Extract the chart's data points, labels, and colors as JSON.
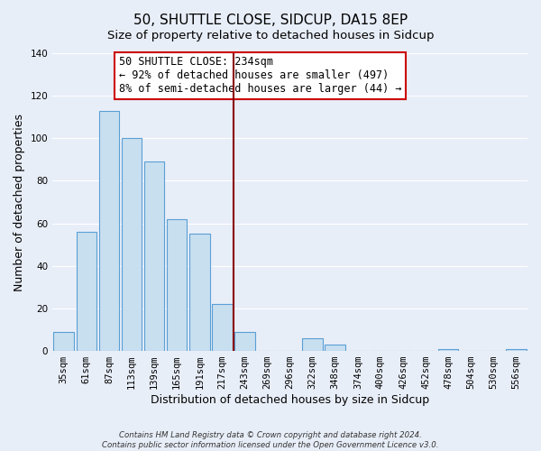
{
  "title": "50, SHUTTLE CLOSE, SIDCUP, DA15 8EP",
  "subtitle": "Size of property relative to detached houses in Sidcup",
  "xlabel": "Distribution of detached houses by size in Sidcup",
  "ylabel": "Number of detached properties",
  "bar_labels": [
    "35sqm",
    "61sqm",
    "87sqm",
    "113sqm",
    "139sqm",
    "165sqm",
    "191sqm",
    "217sqm",
    "243sqm",
    "269sqm",
    "296sqm",
    "322sqm",
    "348sqm",
    "374sqm",
    "400sqm",
    "426sqm",
    "452sqm",
    "478sqm",
    "504sqm",
    "530sqm",
    "556sqm"
  ],
  "bar_values": [
    9,
    56,
    113,
    100,
    89,
    62,
    55,
    22,
    9,
    0,
    0,
    6,
    3,
    0,
    0,
    0,
    0,
    1,
    0,
    0,
    1
  ],
  "bar_color": "#c8dff0",
  "bar_edge_color": "#5a9fd4",
  "vline_x_index": 8,
  "vline_color": "#8b0000",
  "ylim": [
    0,
    140
  ],
  "yticks": [
    0,
    20,
    40,
    60,
    80,
    100,
    120,
    140
  ],
  "annotation_title": "50 SHUTTLE CLOSE: 234sqm",
  "annotation_line1": "← 92% of detached houses are smaller (497)",
  "annotation_line2": "8% of semi-detached houses are larger (44) →",
  "annotation_box_facecolor": "#ffffff",
  "annotation_box_edgecolor": "#cc0000",
  "footer_line1": "Contains HM Land Registry data © Crown copyright and database right 2024.",
  "footer_line2": "Contains public sector information licensed under the Open Government Licence v3.0.",
  "background_color": "#e8eef8",
  "plot_bg_color": "#e8eef8",
  "grid_color": "#ffffff",
  "title_fontsize": 11,
  "subtitle_fontsize": 9.5,
  "xlabel_fontsize": 9,
  "ylabel_fontsize": 9,
  "tick_fontsize": 7.5
}
